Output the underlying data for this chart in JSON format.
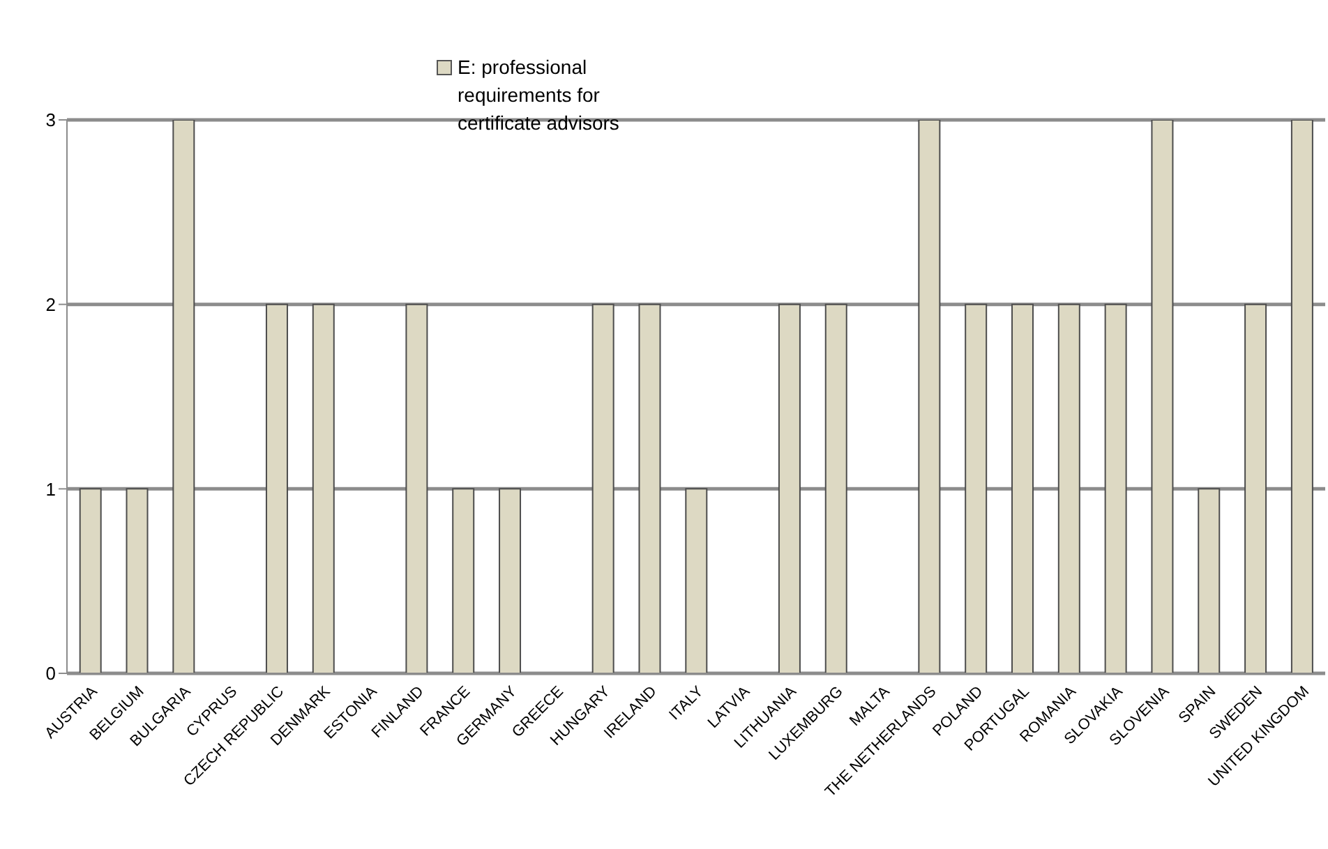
{
  "chart_data": {
    "type": "bar",
    "categories": [
      "AUSTRIA",
      "BELGIUM",
      "BULGARIA",
      "CYPRUS",
      "CZECH REPUBLIC",
      "DENMARK",
      "ESTONIA",
      "FINLAND",
      "FRANCE",
      "GERMANY",
      "GREECE",
      "HUNGARY",
      "IRELAND",
      "ITALY",
      "LATVIA",
      "LITHUANIA",
      "LUXEMBURG",
      "MALTA",
      "THE NETHERLANDS",
      "POLAND",
      "PORTUGAL",
      "ROMANIA",
      "SLOVAKIA",
      "SLOVENIA",
      "SPAIN",
      "SWEDEN",
      "UNITED KINGDOM"
    ],
    "series": [
      {
        "name": "E: professional requirements for certificate advisors",
        "color": "#ddd9c3",
        "values": [
          1,
          1,
          3,
          0,
          2,
          2,
          0,
          2,
          1,
          1,
          0,
          2,
          2,
          1,
          0,
          2,
          2,
          0,
          3,
          2,
          2,
          2,
          2,
          3,
          1,
          2,
          3
        ]
      }
    ],
    "ylim": [
      0,
      3
    ],
    "yticks": [
      0,
      1,
      2,
      3
    ],
    "grid": "y",
    "legend": "top"
  }
}
